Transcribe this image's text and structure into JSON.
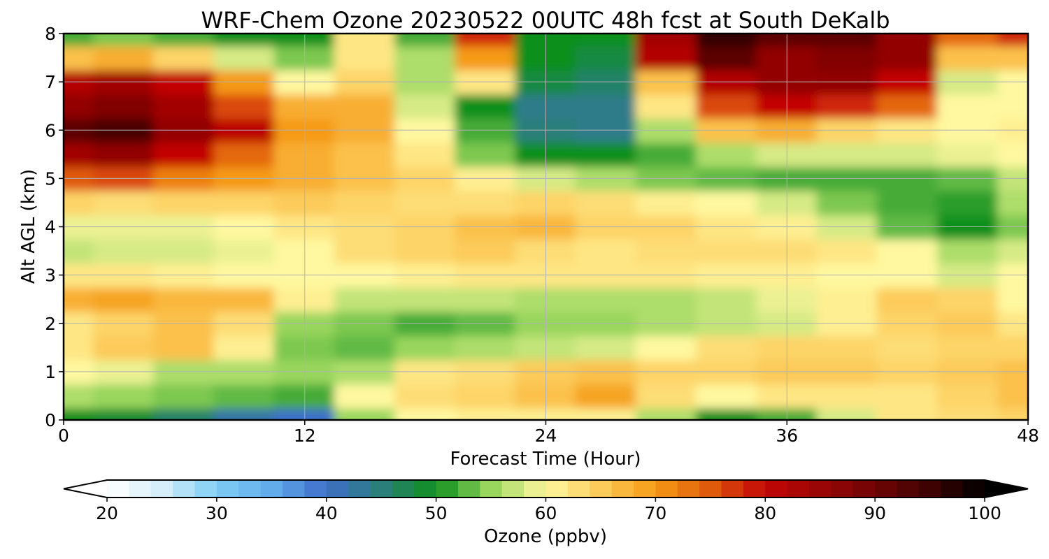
{
  "chart_data": {
    "type": "heatmap",
    "title": "WRF-Chem Ozone  20230522 00UTC 48h fcst at South DeKalb",
    "xlabel": "Forecast Time (Hour)",
    "ylabel": "Alt AGL (km)",
    "x_ticks": [
      "0",
      "12",
      "24",
      "36",
      "48"
    ],
    "y_ticks": [
      "0",
      "1",
      "2",
      "3",
      "4",
      "5",
      "6",
      "7",
      "8"
    ],
    "xlim": [
      0,
      48
    ],
    "ylim": [
      0,
      8
    ],
    "grid": true,
    "colorbar": {
      "label": "Ozone  (ppbv)",
      "ticks": [
        "20",
        "30",
        "40",
        "50",
        "60",
        "70",
        "80",
        "90",
        "100"
      ],
      "range": [
        20,
        100
      ],
      "extend": "both",
      "orientation": "horizontal",
      "colors": {
        "20": "#ffffff",
        "25": "#d6eefa",
        "30": "#7fcdf5",
        "35": "#62acec",
        "40": "#3e6ec9",
        "45": "#2a7f7a",
        "50": "#0e8f1e",
        "55": "#99d65d",
        "60": "#fff8a0",
        "65": "#fccb5a",
        "70": "#f59a14",
        "75": "#e05a0c",
        "80": "#c30606",
        "85": "#9a0606",
        "90": "#700405",
        "95": "#3e0202",
        "100": "#000000"
      }
    },
    "x": [
      0,
      3,
      6,
      9,
      12,
      15,
      18,
      21,
      24,
      27,
      30,
      33,
      36,
      39,
      42,
      45,
      48
    ],
    "y": [
      0,
      0.5,
      1,
      1.5,
      2,
      2.5,
      3,
      3.5,
      4,
      4.5,
      5,
      5.5,
      6,
      6.5,
      7,
      7.5,
      8
    ],
    "z": [
      [
        50,
        49,
        46,
        42,
        40,
        55,
        60,
        61,
        61,
        61,
        56,
        50,
        52,
        58,
        62,
        63,
        64
      ],
      [
        56,
        55,
        54,
        53,
        52,
        60,
        63,
        64,
        66,
        69,
        63,
        60,
        62,
        62,
        62,
        64,
        66
      ],
      [
        60,
        59,
        56,
        56,
        55,
        56,
        62,
        63,
        65,
        66,
        64,
        64,
        65,
        65,
        64,
        65,
        66
      ],
      [
        62,
        65,
        66,
        61,
        54,
        53,
        55,
        56,
        57,
        58,
        60,
        63,
        64,
        64,
        63,
        64,
        64
      ],
      [
        62,
        64,
        66,
        63,
        55,
        54,
        52,
        53,
        55,
        55,
        56,
        57,
        58,
        61,
        64,
        65,
        62
      ],
      [
        68,
        69,
        67,
        67,
        61,
        57,
        57,
        57,
        56,
        56,
        56,
        57,
        59,
        61,
        65,
        64,
        60
      ],
      [
        62,
        62,
        61,
        60,
        60,
        60,
        61,
        62,
        62,
        62,
        62,
        61,
        61,
        60,
        60,
        58,
        60
      ],
      [
        57,
        58,
        58,
        59,
        60,
        63,
        64,
        65,
        63,
        62,
        63,
        63,
        63,
        62,
        60,
        56,
        58
      ],
      [
        59,
        59,
        59,
        60,
        62,
        63,
        64,
        66,
        67,
        64,
        64,
        62,
        61,
        58,
        53,
        50,
        54
      ],
      [
        64,
        63,
        64,
        64,
        65,
        64,
        63,
        63,
        64,
        63,
        61,
        60,
        58,
        54,
        52,
        51,
        56
      ],
      [
        75,
        76,
        72,
        70,
        68,
        66,
        64,
        61,
        58,
        56,
        54,
        53,
        52,
        52,
        52,
        53,
        57
      ],
      [
        84,
        86,
        80,
        74,
        68,
        66,
        62,
        54,
        50,
        50,
        52,
        56,
        58,
        58,
        58,
        59,
        60
      ],
      [
        92,
        94,
        86,
        81,
        70,
        68,
        60,
        52,
        45,
        44,
        56,
        66,
        68,
        64,
        62,
        60,
        61
      ],
      [
        86,
        88,
        84,
        76,
        68,
        68,
        58,
        50,
        44,
        44,
        62,
        76,
        80,
        78,
        74,
        60,
        60
      ],
      [
        82,
        84,
        80,
        70,
        60,
        64,
        56,
        62,
        48,
        46,
        66,
        82,
        86,
        86,
        80,
        58,
        60
      ],
      [
        66,
        68,
        64,
        58,
        54,
        62,
        56,
        70,
        50,
        48,
        82,
        92,
        86,
        88,
        86,
        66,
        66
      ],
      [
        52,
        54,
        52,
        50,
        50,
        62,
        52,
        78,
        50,
        50,
        84,
        96,
        92,
        92,
        86,
        74,
        78
      ]
    ]
  }
}
